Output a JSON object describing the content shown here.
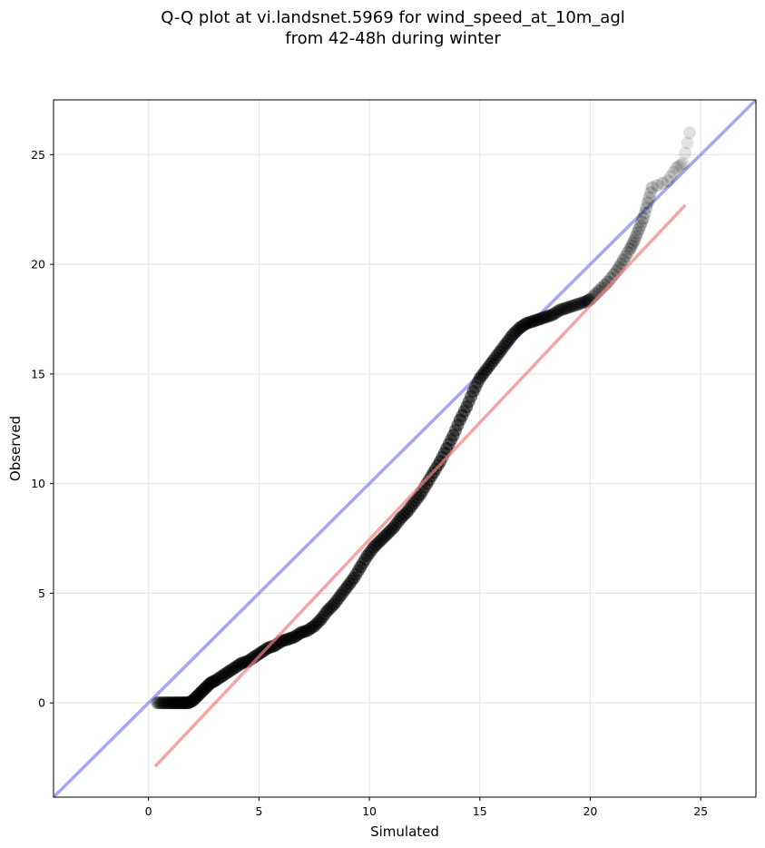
{
  "chart_data": {
    "type": "scatter",
    "title_lines": [
      "Q-Q plot at vi.landsnet.5969 for wind_speed_at_10m_agl",
      "from 42-48h during winter"
    ],
    "xlabel": "Simulated",
    "ylabel": "Observed",
    "xlim": [
      -4.3,
      27.5
    ],
    "ylim": [
      -4.3,
      27.5
    ],
    "xticks": [
      0,
      5,
      10,
      15,
      20,
      25
    ],
    "yticks": [
      0,
      5,
      10,
      15,
      20,
      25
    ],
    "xtick_labels": [
      "0",
      "5",
      "10",
      "15",
      "20",
      "25"
    ],
    "ytick_labels": [
      "0",
      "5",
      "10",
      "15",
      "20",
      "25"
    ],
    "grid": true,
    "point_color": "#000000",
    "quantile_points": {
      "x": [
        0.4,
        0.6,
        0.8,
        1.0,
        1.2,
        1.4,
        1.6,
        1.8,
        2.0,
        2.2,
        2.4,
        2.6,
        2.8,
        3.0,
        3.3,
        3.6,
        3.9,
        4.2,
        4.5,
        4.8,
        5.1,
        5.4,
        5.7,
        6.0,
        6.3,
        6.6,
        6.9,
        7.2,
        7.5,
        7.8,
        8.1,
        8.4,
        8.7,
        9.0,
        9.3,
        9.6,
        9.9,
        10.2,
        10.5,
        10.8,
        11.1,
        11.4,
        11.7,
        12.0,
        12.3,
        12.6,
        12.9,
        13.2,
        13.5,
        13.8,
        14.1,
        14.4,
        14.7,
        15.0,
        15.3,
        15.6,
        15.9,
        16.2,
        16.5,
        16.8,
        17.1,
        17.4,
        17.7,
        18.0,
        18.3,
        18.6,
        18.9,
        19.2,
        19.5,
        19.8,
        20.0,
        20.4,
        20.8,
        21.2,
        21.5,
        21.8,
        22.0,
        22.2,
        22.4,
        22.6,
        22.8,
        23.5,
        23.9,
        24.2,
        24.5
      ],
      "y": [
        0.0,
        0.0,
        0.0,
        0.0,
        0.0,
        0.0,
        0.0,
        0.0,
        0.1,
        0.3,
        0.5,
        0.7,
        0.9,
        1.0,
        1.2,
        1.4,
        1.6,
        1.8,
        1.9,
        2.1,
        2.3,
        2.5,
        2.6,
        2.8,
        2.9,
        3.0,
        3.2,
        3.3,
        3.5,
        3.8,
        4.2,
        4.5,
        4.9,
        5.3,
        5.7,
        6.2,
        6.7,
        7.1,
        7.4,
        7.7,
        8.0,
        8.4,
        8.7,
        9.1,
        9.5,
        10.0,
        10.5,
        11.0,
        11.6,
        12.2,
        12.9,
        13.5,
        14.2,
        14.8,
        15.2,
        15.6,
        16.0,
        16.4,
        16.8,
        17.1,
        17.3,
        17.4,
        17.5,
        17.6,
        17.7,
        17.9,
        18.0,
        18.1,
        18.2,
        18.3,
        18.4,
        18.8,
        19.2,
        19.7,
        20.2,
        20.7,
        21.1,
        21.6,
        22.1,
        22.8,
        23.5,
        23.8,
        24.4,
        24.6,
        26.0
      ]
    },
    "reference_line_1to1": {
      "color": "#8888ee",
      "x": [
        -4.3,
        27.5
      ],
      "y": [
        -4.3,
        27.5
      ]
    },
    "fit_line": {
      "color": "#f08080",
      "x": [
        0.3,
        24.3
      ],
      "y": [
        -2.9,
        22.7
      ]
    }
  }
}
